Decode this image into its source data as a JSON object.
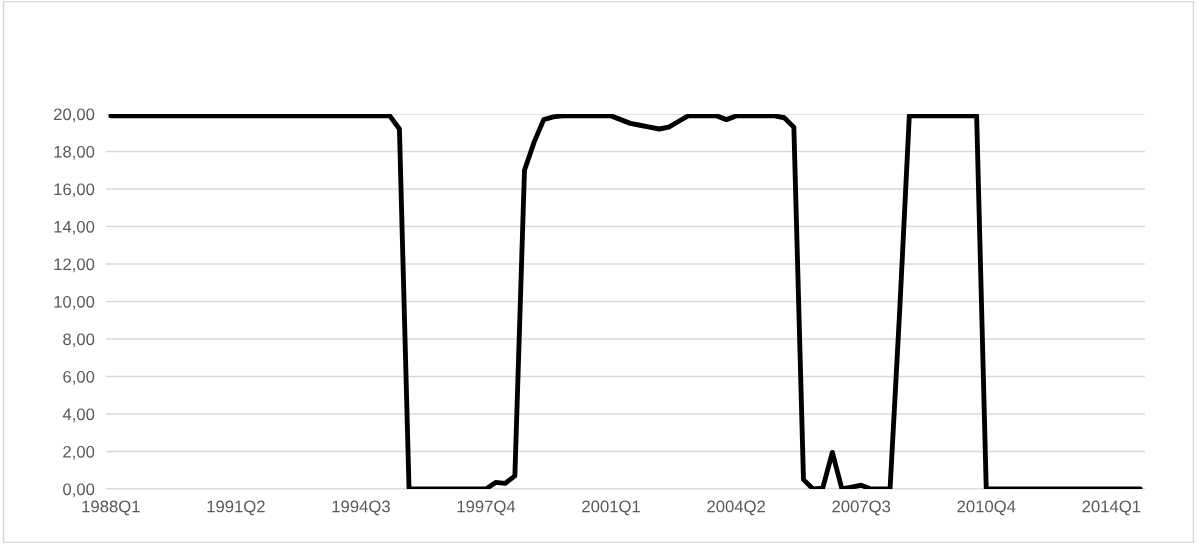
{
  "chart_data": {
    "type": "line",
    "categories": [
      "1988Q1",
      null,
      null,
      null,
      null,
      null,
      null,
      null,
      null,
      null,
      null,
      null,
      null,
      "1991Q2",
      null,
      null,
      null,
      null,
      null,
      null,
      null,
      null,
      null,
      null,
      null,
      null,
      "1994Q3",
      null,
      null,
      null,
      null,
      null,
      null,
      null,
      null,
      null,
      null,
      null,
      null,
      "1997Q4",
      null,
      null,
      null,
      null,
      null,
      null,
      null,
      null,
      null,
      null,
      null,
      null,
      "2001Q1",
      null,
      null,
      null,
      null,
      null,
      null,
      null,
      null,
      null,
      null,
      null,
      null,
      "2004Q2",
      null,
      null,
      null,
      null,
      null,
      null,
      null,
      null,
      null,
      null,
      null,
      null,
      "2007Q3",
      null,
      null,
      null,
      null,
      null,
      null,
      null,
      null,
      null,
      null,
      null,
      null,
      "2010Q4",
      null,
      null,
      null,
      null,
      null,
      null,
      null,
      null,
      null,
      null,
      null,
      null,
      "2014Q1",
      null,
      null,
      null
    ],
    "series": [
      {
        "color": "#000000",
        "values": [
          19.9,
          19.9,
          19.9,
          19.9,
          19.9,
          19.9,
          19.9,
          19.9,
          19.9,
          19.9,
          19.9,
          19.9,
          19.9,
          19.9,
          19.9,
          19.9,
          19.9,
          19.9,
          19.9,
          19.9,
          19.9,
          19.9,
          19.9,
          19.9,
          19.9,
          19.9,
          19.9,
          19.9,
          19.9,
          19.9,
          19.2,
          0,
          0,
          0,
          0,
          0,
          0,
          0,
          0,
          0,
          0.35,
          0.3,
          0.7,
          17.0,
          18.5,
          19.7,
          19.85,
          19.9,
          19.9,
          19.9,
          19.9,
          19.9,
          19.9,
          19.7,
          19.5,
          19.4,
          19.3,
          19.2,
          19.3,
          19.6,
          19.9,
          19.9,
          19.9,
          19.9,
          19.7,
          19.9,
          19.9,
          19.9,
          19.9,
          19.9,
          19.8,
          19.3,
          0.5,
          0,
          0.05,
          1.95,
          0,
          0.1,
          0.2,
          0,
          0,
          0,
          9.5,
          19.9,
          19.9,
          19.9,
          19.9,
          19.9,
          19.9,
          19.9,
          19.9,
          0,
          0,
          0,
          0,
          0,
          0,
          0,
          0,
          0,
          0,
          0,
          0,
          0,
          0,
          0,
          0,
          0
        ]
      }
    ],
    "ylim": [
      0,
      20
    ],
    "yticks": [
      {
        "value": 0,
        "label": "0,00"
      },
      {
        "value": 2,
        "label": "2,00"
      },
      {
        "value": 4,
        "label": "4,00"
      },
      {
        "value": 6,
        "label": "6,00"
      },
      {
        "value": 8,
        "label": "8,00"
      },
      {
        "value": 10,
        "label": "10,00"
      },
      {
        "value": 12,
        "label": "12,00"
      },
      {
        "value": 14,
        "label": "14,00"
      },
      {
        "value": 16,
        "label": "16,00"
      },
      {
        "value": 18,
        "label": "18,00"
      },
      {
        "value": 20,
        "label": "20,00"
      }
    ],
    "grid": "y",
    "legend": false,
    "marker": "none",
    "line_style": "solid"
  }
}
